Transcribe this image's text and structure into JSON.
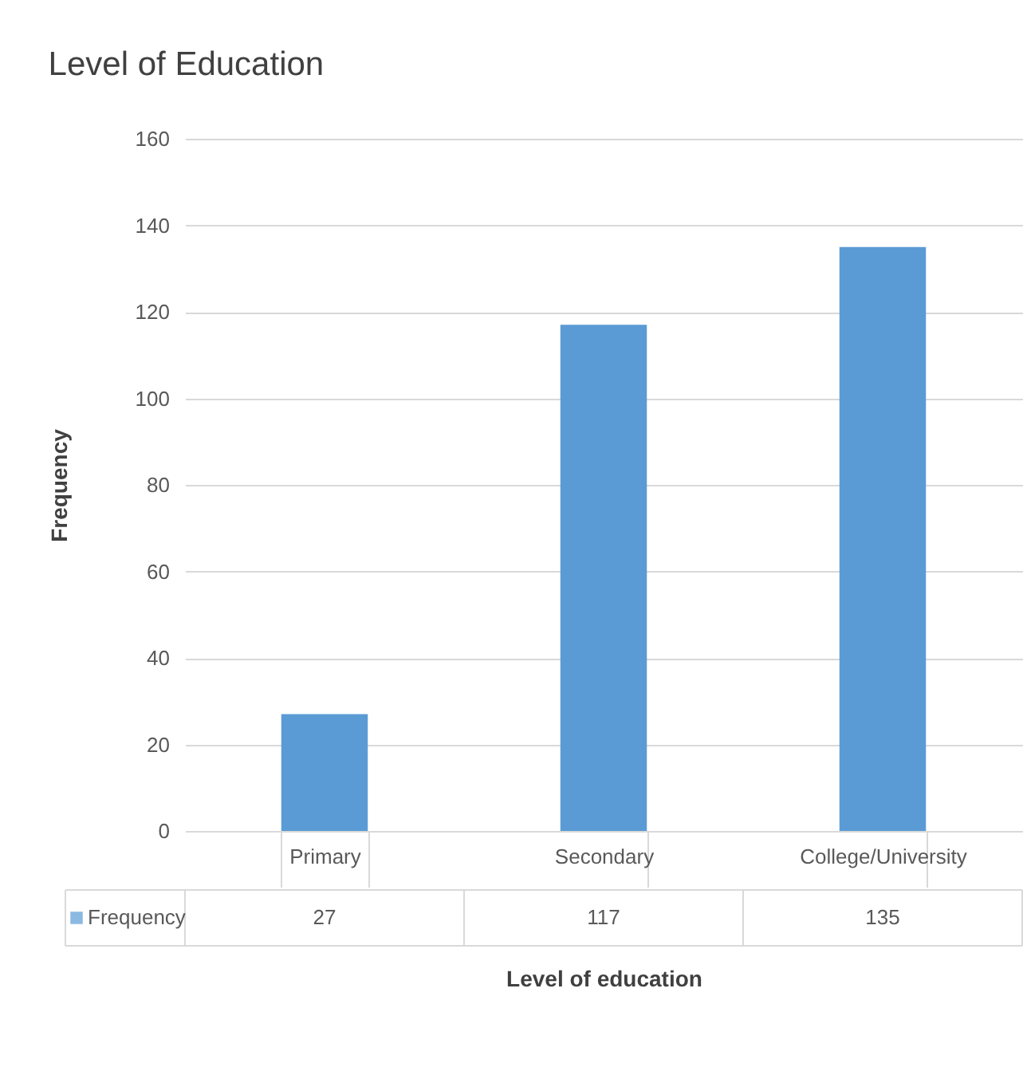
{
  "chart_data": {
    "type": "bar",
    "title": "Level of Education",
    "xlabel": "Level of education",
    "ylabel": "Frequency",
    "categories": [
      "Primary",
      "Secondary",
      "College/University"
    ],
    "series": [
      {
        "name": "Frequency",
        "color": "#5b9bd5",
        "values": [
          27,
          117,
          135
        ]
      }
    ],
    "ylim": [
      0,
      160
    ],
    "yticks": [
      0,
      20,
      40,
      60,
      80,
      100,
      120,
      140,
      160
    ],
    "grid": "y",
    "data_labels": true
  }
}
